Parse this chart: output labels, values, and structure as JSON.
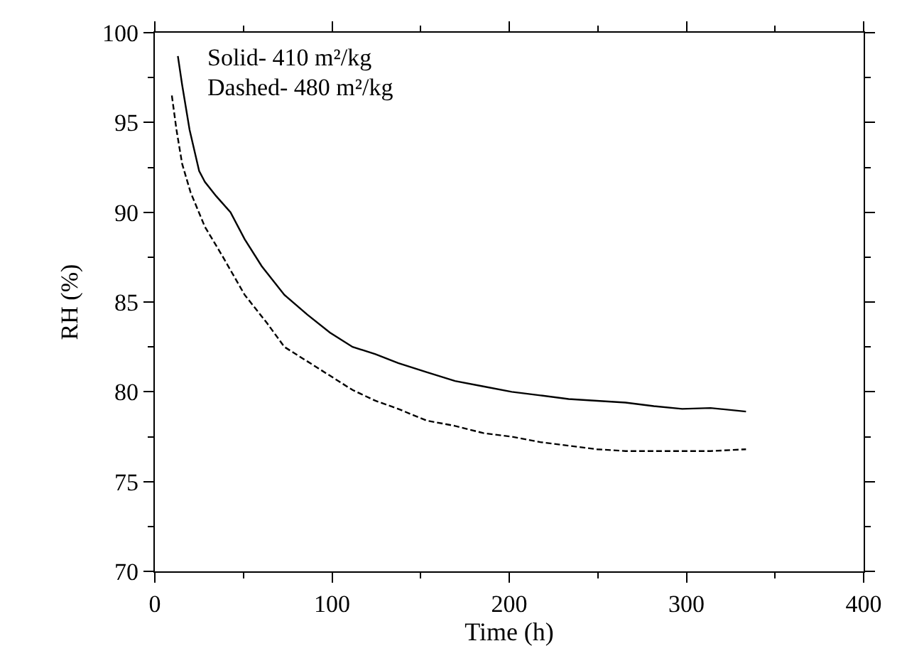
{
  "chart_data": {
    "type": "line",
    "xlabel": "Time (h)",
    "ylabel": "RH (%)",
    "annotations": [
      "Solid- 410 m²/kg",
      "Dashed- 480 m²/kg"
    ],
    "xlim": [
      0,
      400
    ],
    "xticks": [
      0,
      100,
      200,
      300,
      400
    ],
    "ylim": [
      70,
      100
    ],
    "yticks": [
      70,
      75,
      80,
      85,
      90,
      95,
      100
    ],
    "marker": "none",
    "series": [
      {
        "color": "#000000",
        "line_style": "solid",
        "x": [
          13,
          15.4,
          19.6,
          25,
          28.2,
          34.6,
          42.7,
          50.7,
          60.3,
          73.1,
          86,
          98.8,
          111.6,
          124.5,
          137.3,
          153.3,
          169.4,
          185.4,
          201.4,
          217.5,
          233.5,
          249.5,
          265.6,
          281.6,
          297.6,
          313.6,
          333.6
        ],
        "values": [
          98.7,
          97.1,
          94.6,
          92.3,
          91.7,
          90.9,
          90.0,
          88.5,
          87.0,
          85.4,
          84.3,
          83.3,
          82.5,
          82.1,
          81.6,
          81.1,
          80.6,
          80.3,
          80.0,
          79.8,
          79.6,
          79.5,
          79.4,
          79.2,
          79.05,
          79.1,
          78.9
        ]
      },
      {
        "color": "#000000",
        "line_style": "dashed",
        "x": [
          9.6,
          12.2,
          15.4,
          20.2,
          28.2,
          37.9,
          50.7,
          63.5,
          73.1,
          86,
          98.8,
          111.6,
          124.5,
          137.3,
          153.3,
          169.4,
          185.4,
          201.4,
          217.5,
          233.5,
          249.5,
          265.6,
          281.6,
          297.6,
          313.6,
          333.6
        ],
        "values": [
          96.5,
          94.6,
          92.7,
          91.1,
          89.2,
          87.6,
          85.4,
          83.8,
          82.5,
          81.7,
          80.9,
          80.1,
          79.5,
          79.05,
          78.4,
          78.1,
          77.7,
          77.5,
          77.2,
          77.0,
          76.8,
          76.7,
          76.7,
          76.7,
          76.7,
          76.8
        ]
      }
    ]
  }
}
